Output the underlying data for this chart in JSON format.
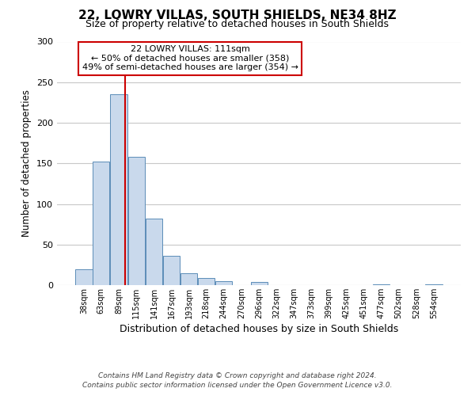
{
  "title": "22, LOWRY VILLAS, SOUTH SHIELDS, NE34 8HZ",
  "subtitle": "Size of property relative to detached houses in South Shields",
  "xlabel": "Distribution of detached houses by size in South Shields",
  "ylabel": "Number of detached properties",
  "bin_labels": [
    "38sqm",
    "63sqm",
    "89sqm",
    "115sqm",
    "141sqm",
    "167sqm",
    "193sqm",
    "218sqm",
    "244sqm",
    "270sqm",
    "296sqm",
    "322sqm",
    "347sqm",
    "373sqm",
    "399sqm",
    "425sqm",
    "451sqm",
    "477sqm",
    "502sqm",
    "528sqm",
    "554sqm"
  ],
  "bar_heights": [
    20,
    152,
    235,
    158,
    82,
    36,
    15,
    9,
    5,
    0,
    4,
    0,
    0,
    0,
    0,
    0,
    0,
    1,
    0,
    0,
    1
  ],
  "bar_color": "#c9d9ec",
  "bar_edge_color": "#5b8db8",
  "vline_x_idx": 2,
  "bin_edges": [
    38,
    63,
    89,
    115,
    141,
    167,
    193,
    218,
    244,
    270,
    296,
    322,
    347,
    373,
    399,
    425,
    451,
    477,
    502,
    528,
    554,
    580
  ],
  "ylim": [
    0,
    300
  ],
  "yticks": [
    0,
    50,
    100,
    150,
    200,
    250,
    300
  ],
  "annotation_title": "22 LOWRY VILLAS: 111sqm",
  "annotation_line1": "← 50% of detached houses are smaller (358)",
  "annotation_line2": "49% of semi-detached houses are larger (354) →",
  "annotation_box_color": "#ffffff",
  "annotation_box_edge_color": "#cc0000",
  "vline_color": "#cc0000",
  "vline_x_data": 111,
  "footer1": "Contains HM Land Registry data © Crown copyright and database right 2024.",
  "footer2": "Contains public sector information licensed under the Open Government Licence v3.0.",
  "background_color": "#ffffff",
  "grid_color": "#c8c8c8"
}
